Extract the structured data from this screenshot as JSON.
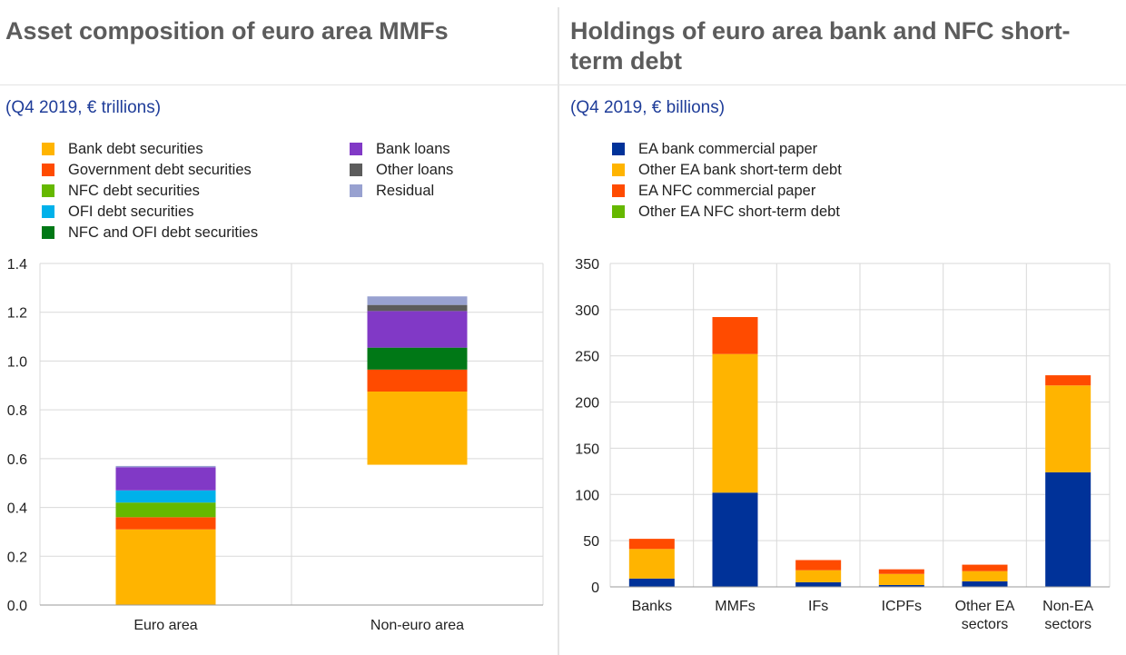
{
  "left_panel": {
    "title": "Asset composition of euro area MMFs",
    "subtitle": "(Q4 2019, € trillions)"
  },
  "right_panel": {
    "title": "Holdings of euro area bank and NFC short-term debt",
    "subtitle": "(Q4 2019, € billions)"
  },
  "chart_data": [
    {
      "type": "bar",
      "stacked": true,
      "style": "waterfall",
      "categories": [
        "Euro area",
        "Non-euro area"
      ],
      "series": [
        {
          "name": "Bank debt securities",
          "color": "#ffb400",
          "values": [
            0.31,
            0.3
          ]
        },
        {
          "name": "Government debt securities",
          "color": "#ff4b00",
          "values": [
            0.05,
            0.09
          ]
        },
        {
          "name": "NFC debt securities",
          "color": "#65b800",
          "values": [
            0.06,
            0.0
          ]
        },
        {
          "name": "OFI debt securities",
          "color": "#00b1ea",
          "values": [
            0.05,
            0.0
          ]
        },
        {
          "name": "NFC and OFI debt securities",
          "color": "#007816",
          "values": [
            0.0,
            0.09
          ]
        },
        {
          "name": "Bank loans",
          "color": "#8139c6",
          "values": [
            0.095,
            0.15
          ]
        },
        {
          "name": "Other loans",
          "color": "#5c5c5c",
          "values": [
            0.0,
            0.025
          ]
        },
        {
          "name": "Residual",
          "color": "#98a1d0",
          "values": [
            0.005,
            0.035
          ]
        }
      ],
      "base": [
        0,
        0.575
      ],
      "ylim": [
        0,
        1.4
      ],
      "yticks": [
        "0.0",
        "0.2",
        "0.4",
        "0.6",
        "0.8",
        "1.0",
        "1.2",
        "1.4"
      ],
      "grid": true,
      "legend_position": "top"
    },
    {
      "type": "bar",
      "stacked": true,
      "categories": [
        [
          "Banks"
        ],
        [
          "MMFs"
        ],
        [
          "IFs"
        ],
        [
          "ICPFs"
        ],
        [
          "Other EA",
          "sectors"
        ],
        [
          "Non-EA",
          "sectors"
        ]
      ],
      "series": [
        {
          "name": "EA bank commercial paper",
          "color": "#003299",
          "values": [
            9,
            102,
            5,
            2,
            6,
            124
          ]
        },
        {
          "name": "Other EA bank short-term debt",
          "color": "#ffb400",
          "values": [
            32,
            150,
            13,
            12,
            11,
            94
          ]
        },
        {
          "name": "EA NFC commercial paper",
          "color": "#ff4b00",
          "values": [
            11,
            40,
            11,
            5,
            7,
            11
          ]
        },
        {
          "name": "Other EA NFC short-term debt",
          "color": "#65b800",
          "values": [
            0,
            0,
            0,
            0,
            0,
            0
          ]
        }
      ],
      "ylim": [
        0,
        350
      ],
      "yticks": [
        "0",
        "50",
        "100",
        "150",
        "200",
        "250",
        "300",
        "350"
      ],
      "grid": true,
      "legend_position": "top"
    }
  ]
}
